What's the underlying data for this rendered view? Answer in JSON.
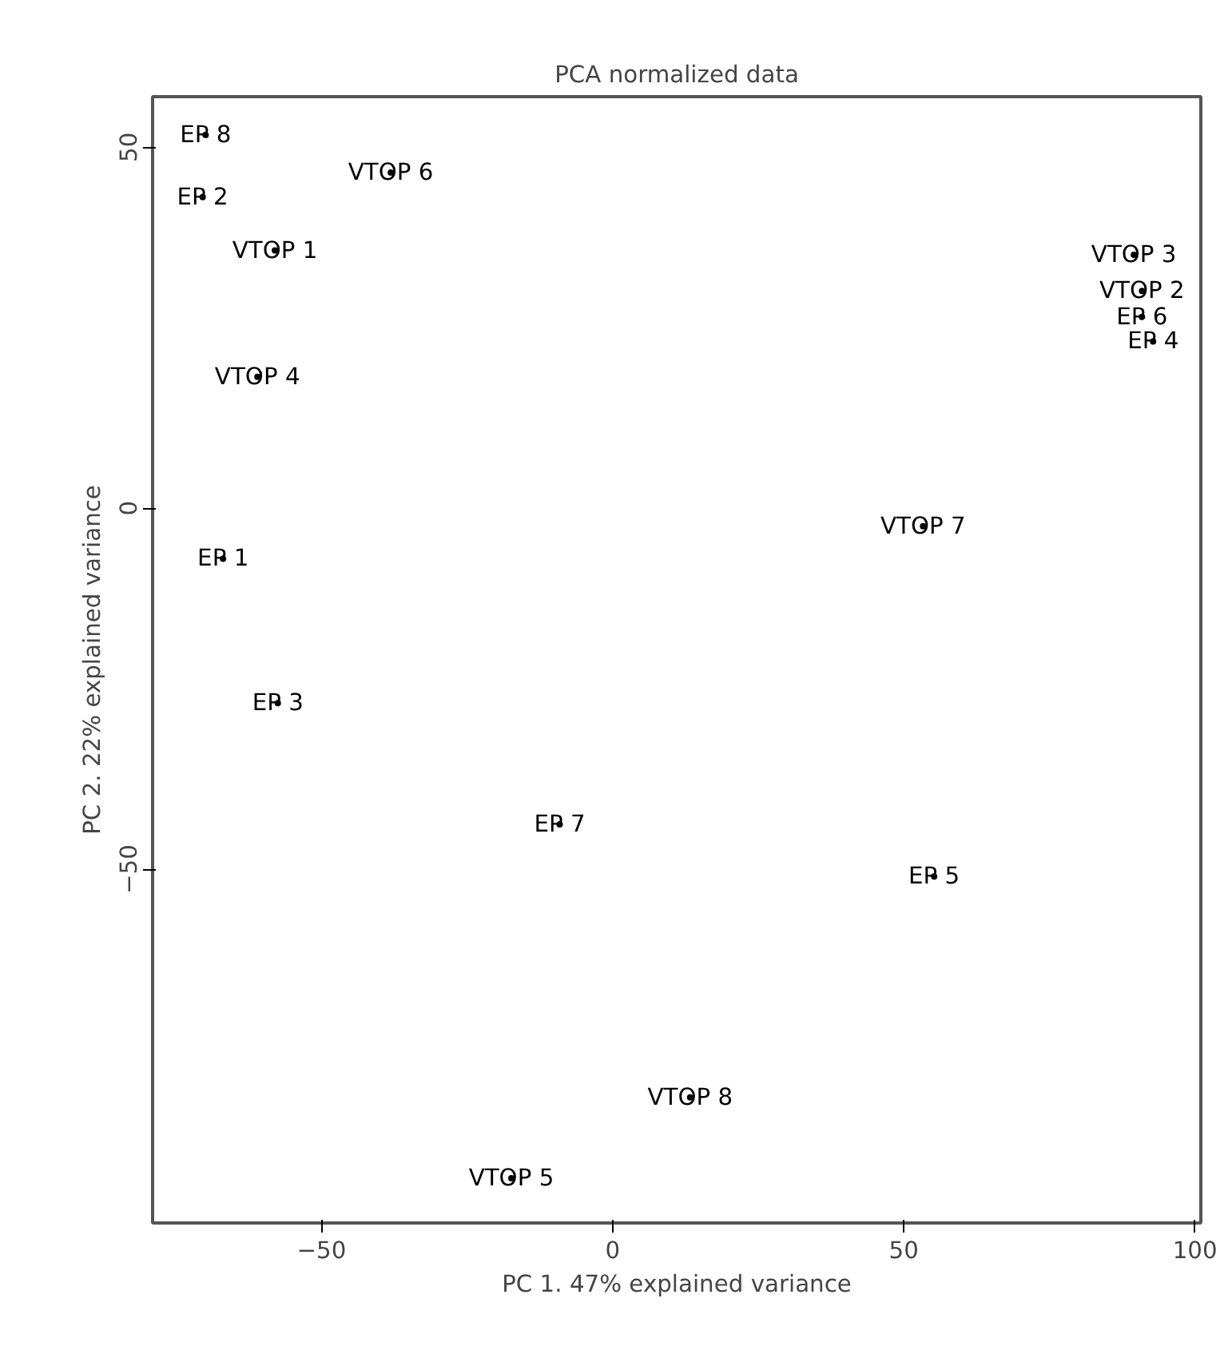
{
  "chart_data": {
    "type": "scatter",
    "title": "PCA normalized data",
    "xlabel": "PC 1. 47% explained variance",
    "ylabel": "PC 2. 22% explained variance",
    "xlim": [
      -79,
      101
    ],
    "ylim": [
      -99,
      57
    ],
    "xticks": [
      -50,
      0,
      50,
      100
    ],
    "yticks": [
      -50,
      0,
      50
    ],
    "grid": false,
    "marker": "circle",
    "series": [
      {
        "color": "#000000",
        "x": [
          -69.9,
          -70.4,
          -38.1,
          -58,
          -61,
          -66.9,
          -57.5,
          -9.1,
          53.3,
          55.2,
          13.3,
          -17.4,
          89.5,
          90.9,
          90.9,
          92.8
        ],
        "values": [
          51.7,
          43.1,
          46.5,
          35.7,
          18.2,
          -7.0,
          -27,
          -43.8,
          -2.5,
          -51,
          -81.6,
          -92.8,
          35.1,
          30.1,
          26.5,
          23.1
        ]
      }
    ],
    "annotations": [
      {
        "text": "EP 8",
        "x": -69.9,
        "y": 51.7
      },
      {
        "text": "EP 2",
        "x": -70.4,
        "y": 43.1
      },
      {
        "text": "VTOP 6",
        "x": -38.1,
        "y": 46.5
      },
      {
        "text": "VTOP 1",
        "x": -58,
        "y": 35.7
      },
      {
        "text": "VTOP 4",
        "x": -61,
        "y": 18.2
      },
      {
        "text": "EP 1",
        "x": -66.9,
        "y": -7.0
      },
      {
        "text": "EP 3",
        "x": -57.5,
        "y": -27
      },
      {
        "text": "EP 7",
        "x": -9.1,
        "y": -43.8
      },
      {
        "text": "VTOP 7",
        "x": 53.3,
        "y": -2.5
      },
      {
        "text": "EP 5",
        "x": 55.2,
        "y": -51
      },
      {
        "text": "VTOP 8",
        "x": 13.3,
        "y": -81.6
      },
      {
        "text": "VTOP 5",
        "x": -17.4,
        "y": -92.8
      },
      {
        "text": "VTOP 3",
        "x": 89.5,
        "y": 35.1
      },
      {
        "text": "VTOP 2",
        "x": 90.9,
        "y": 30.1
      },
      {
        "text": "EP 6",
        "x": 90.9,
        "y": 26.5
      },
      {
        "text": "EP 4",
        "x": 92.8,
        "y": 23.1
      }
    ]
  }
}
